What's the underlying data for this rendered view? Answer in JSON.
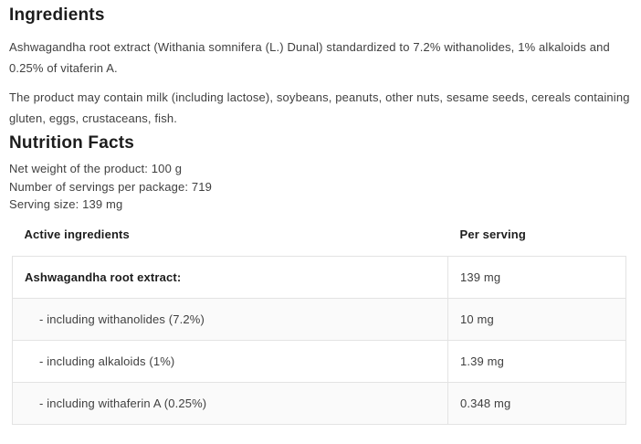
{
  "ingredients": {
    "title": "Ingredients",
    "paragraphs": [
      "Ashwagandha root extract (Withania somnifera (L.) Dunal) standardized to 7.2% withanolides, 1% alkaloids and 0.25% of vitaferin A.",
      "The product may contain milk (including lactose), soybeans, peanuts, other nuts, sesame seeds, cereals containing gluten, eggs, crustaceans, fish."
    ]
  },
  "nutrition": {
    "title": "Nutrition Facts",
    "meta": [
      "Net weight of the product: 100 g",
      "Number of servings per package: 719",
      "Serving size: 139 mg"
    ],
    "table": {
      "headers": [
        "Active ingredients",
        "Per serving"
      ],
      "rows": [
        {
          "label": "Ashwagandha root extract:",
          "value": "139 mg"
        },
        {
          "label": "- including withanolides (7.2%)",
          "value": "10 mg"
        },
        {
          "label": "- including alkaloids (1%)",
          "value": "1.39 mg"
        },
        {
          "label": "- including withaferin A (0.25%)",
          "value": "0.348 mg"
        }
      ]
    }
  },
  "colors": {
    "heading_text": "#1c1c1c",
    "body_text": "#3f3f3f",
    "table_border": "#e3e3e3",
    "stripe_row_background": "#fafafa",
    "page_background": "#ffffff"
  }
}
